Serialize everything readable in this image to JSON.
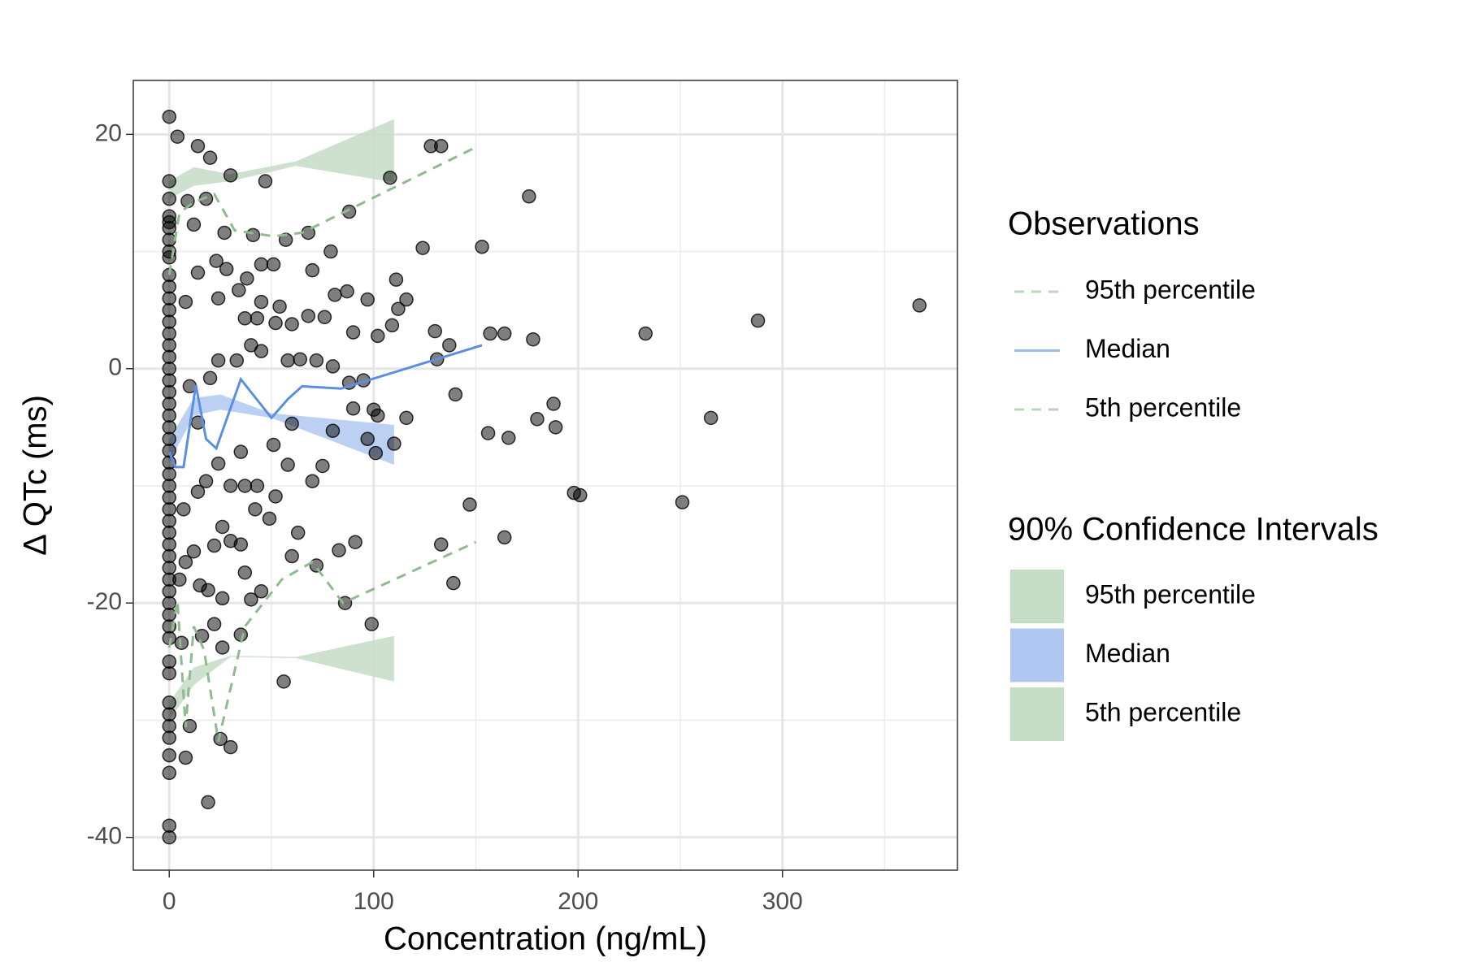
{
  "chart_data": {
    "type": "scatter",
    "xlabel": "Concentration (ng/mL)",
    "ylabel": "Δ QTc (ms)",
    "xlim": [
      -17.6,
      385.6
    ],
    "ylim": [
      -42.8,
      24.6
    ],
    "xticks": [
      0,
      100,
      200,
      300
    ],
    "yticks": [
      -40,
      -20,
      0,
      20
    ],
    "xminorticks": [
      50,
      150,
      250,
      350
    ],
    "yminorticks": [
      -30,
      -10,
      10
    ],
    "grid": true,
    "points": {
      "color": "#000000",
      "alpha": 0.5,
      "x": [
        0,
        0,
        0,
        0,
        0,
        0,
        0,
        0,
        0,
        0,
        0,
        0,
        0,
        0,
        0,
        0,
        0,
        0,
        0,
        0,
        0,
        0,
        0,
        0,
        0,
        0,
        0,
        0,
        0,
        0,
        0,
        0,
        0,
        0,
        0,
        0,
        0,
        0,
        0,
        0,
        0,
        0,
        0,
        0,
        0,
        0,
        0,
        0,
        0,
        0,
        0,
        4,
        14,
        20,
        30,
        47,
        108,
        128,
        133,
        176,
        9,
        18,
        12,
        27,
        41,
        57,
        68,
        88,
        124,
        153,
        79,
        23,
        28,
        38,
        45,
        51,
        70,
        81,
        87,
        97,
        111,
        116,
        112,
        45,
        24,
        14,
        8,
        34,
        54,
        37,
        43,
        52,
        60,
        68,
        76,
        90,
        102,
        109,
        130,
        157,
        164,
        178,
        233,
        288,
        367,
        131,
        137,
        24,
        33,
        40,
        45,
        58,
        64,
        72,
        80,
        95,
        88,
        140,
        102,
        116,
        90,
        97,
        101,
        110,
        80,
        75,
        70,
        58,
        51,
        35,
        24,
        18,
        14,
        30,
        37,
        43,
        52,
        49,
        42,
        26,
        35,
        30,
        22,
        12,
        8,
        15,
        19,
        37,
        40,
        45,
        60,
        72,
        83,
        91,
        63,
        133,
        139,
        147,
        164,
        198,
        201,
        251,
        156,
        166,
        180,
        188,
        189,
        265,
        56,
        99,
        86,
        6,
        16,
        22,
        26,
        35,
        10,
        25,
        30,
        8,
        19,
        26,
        5,
        7,
        10,
        14,
        20,
        60,
        100
      ],
      "y": [
        21.5,
        16,
        14.5,
        13,
        12.5,
        12,
        11,
        10,
        9.5,
        8,
        7,
        6,
        5,
        4,
        3,
        2,
        1,
        0,
        -1,
        -2,
        -3,
        -4,
        -5,
        -6,
        -7,
        -8,
        -9,
        -10,
        -11,
        -12,
        -13,
        -14,
        -15,
        -16,
        -17,
        -18,
        -19,
        -20,
        -21,
        -22,
        -23,
        -25,
        -26,
        -28.5,
        -29.5,
        -30.5,
        -31.5,
        -33,
        -34.5,
        -39,
        -40,
        19.8,
        19,
        18,
        16.5,
        16,
        16.3,
        19,
        19,
        14.7,
        14.3,
        14.5,
        12.3,
        11.6,
        11.4,
        11,
        11.6,
        13.4,
        10.3,
        10.4,
        10,
        9.2,
        8.5,
        7.7,
        8.9,
        8.9,
        8.4,
        6.3,
        6.6,
        5.9,
        7.6,
        5.9,
        5.1,
        5.7,
        6,
        8.2,
        5.7,
        6.7,
        5.3,
        4.3,
        4.3,
        3.9,
        3.8,
        4.5,
        4.4,
        3.1,
        2.8,
        3.7,
        3.2,
        3,
        3,
        2.5,
        3,
        4.1,
        5.4,
        0.8,
        2,
        0.7,
        0.7,
        2,
        1.5,
        0.7,
        0.8,
        0.7,
        0.2,
        -1,
        -1.2,
        -2.2,
        -4,
        -4.2,
        -3.4,
        -6,
        -7.2,
        -6.4,
        -5.3,
        -8.3,
        -9.6,
        -8.2,
        -6.5,
        -7.1,
        -8.1,
        -9.6,
        -10.5,
        -10,
        -10,
        -10,
        -10.9,
        -12.8,
        -12,
        -13.5,
        -15,
        -14.7,
        -15.1,
        -15.6,
        -16.5,
        -18.5,
        -18.9,
        -17.4,
        -19.7,
        -19,
        -16,
        -16.8,
        -15.5,
        -14.8,
        -14,
        -15,
        -18.3,
        -11.6,
        -14.4,
        -10.6,
        -10.8,
        -11.4,
        -5.5,
        -5.9,
        -4.3,
        -3,
        -5,
        -4.2,
        -26.7,
        -21.8,
        -20,
        -23.4,
        -22.8,
        -21.8,
        -23.8,
        -22.7,
        -30.5,
        -31.6,
        -32.3,
        -33.2,
        -37,
        -19.6,
        -18,
        -12,
        -1.5,
        -4.6,
        -0.8,
        -4.7,
        -3.5
      ]
    },
    "legend_titles": [
      "Observations",
      "90% Confidence Intervals"
    ],
    "lines": [
      {
        "name": "95th percentile",
        "color": "#8fbc8f",
        "dashed": true,
        "x": [
          0,
          5,
          12,
          22,
          32,
          51,
          65,
          150
        ],
        "y": [
          8,
          13.3,
          14.2,
          14.9,
          11.8,
          11.3,
          11.6,
          18.9
        ]
      },
      {
        "name": "Median",
        "color": "#5b8fe0",
        "dashed": false,
        "x": [
          0,
          3,
          7,
          13,
          18,
          23,
          35,
          50,
          58,
          65,
          84,
          153
        ],
        "y": [
          -7.1,
          -8.4,
          -8.4,
          -1.4,
          -6,
          -6.8,
          -0.9,
          -4.2,
          -2.6,
          -1.5,
          -1.7,
          2
        ]
      },
      {
        "name": "5th percentile",
        "color": "#8fbc8f",
        "dashed": true,
        "x": [
          0,
          4,
          8,
          12,
          17,
          24,
          37,
          55,
          70,
          85,
          150
        ],
        "y": [
          -23.8,
          -19.8,
          -30.6,
          -22,
          -24,
          -31.8,
          -22,
          -18,
          -16.5,
          -20,
          -14.8
        ]
      }
    ],
    "ribbons": [
      {
        "name": "95th percentile",
        "color": "#c5dcc5",
        "x": [
          0,
          12,
          30,
          62,
          110
        ],
        "lower": [
          14.5,
          15.6,
          16,
          17.3,
          15.9
        ],
        "upper": [
          16,
          17.2,
          16.6,
          17.7,
          21.3
        ]
      },
      {
        "name": "Median",
        "color": "#b0c8f2",
        "x": [
          0,
          12,
          25,
          50,
          110
        ],
        "lower": [
          -8,
          -4,
          -3.5,
          -4.2,
          -8.2
        ],
        "upper": [
          -6,
          -2.5,
          -2.2,
          -3.8,
          -4.8
        ]
      },
      {
        "name": "5th percentile",
        "color": "#c5dcc5",
        "x": [
          0,
          12,
          30,
          62,
          110
        ],
        "lower": [
          -30,
          -27,
          -24.6,
          -24.7,
          -26.7
        ],
        "upper": [
          -28.5,
          -25.5,
          -24.5,
          -24.6,
          -22.8
        ]
      }
    ]
  }
}
